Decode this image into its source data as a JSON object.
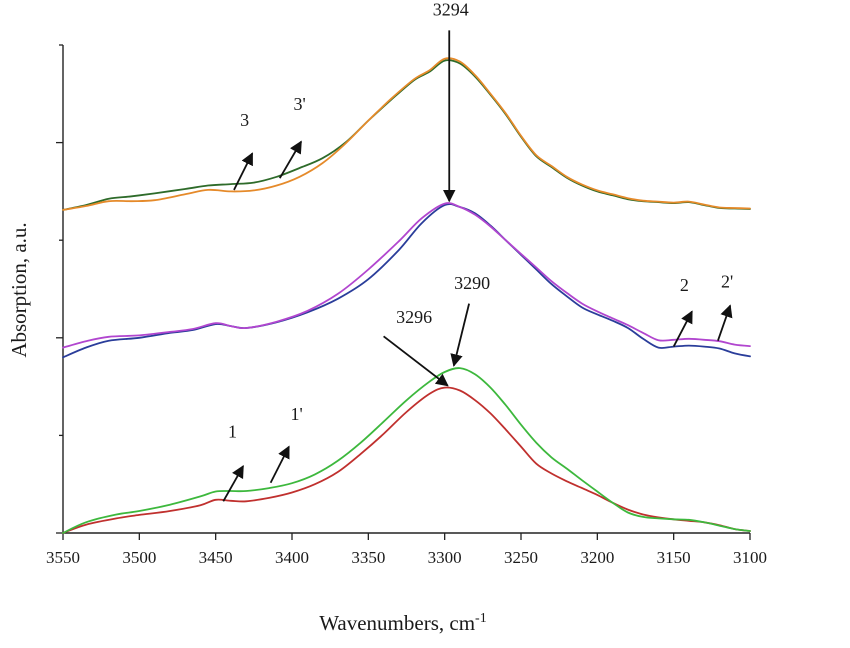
{
  "chart_data": {
    "type": "line",
    "xlabel": "Wavenumbers, cm",
    "xlabel_superscript": "-1",
    "ylabel": "Absorption, a.u.",
    "xlim": [
      3550,
      3100
    ],
    "ylim": [
      0,
      1
    ],
    "x_ticks": [
      3550,
      3500,
      3450,
      3400,
      3350,
      3300,
      3250,
      3200,
      3150,
      3100
    ],
    "x_tick_labels": [
      "3550",
      "3500",
      "3450",
      "3400",
      "3350",
      "3300",
      "3250",
      "3200",
      "3150",
      "3100"
    ],
    "y_major_ticks": [
      0.0,
      0.4,
      0.8
    ],
    "y_minor_ticks": [
      0.2,
      0.6,
      1.0
    ],
    "series": [
      {
        "name": "1",
        "color": "#c0302e",
        "x": [
          3550,
          3535,
          3515,
          3500,
          3480,
          3460,
          3450,
          3440,
          3430,
          3415,
          3400,
          3385,
          3370,
          3355,
          3340,
          3325,
          3310,
          3300,
          3290,
          3280,
          3270,
          3260,
          3250,
          3240,
          3230,
          3220,
          3210,
          3200,
          3190,
          3180,
          3170,
          3160,
          3150,
          3140,
          3130,
          3120,
          3110,
          3100
        ],
        "y": [
          0.0,
          0.017,
          0.03,
          0.037,
          0.045,
          0.057,
          0.068,
          0.066,
          0.065,
          0.072,
          0.083,
          0.1,
          0.125,
          0.162,
          0.203,
          0.248,
          0.285,
          0.298,
          0.292,
          0.272,
          0.245,
          0.212,
          0.177,
          0.142,
          0.122,
          0.106,
          0.092,
          0.078,
          0.062,
          0.048,
          0.038,
          0.032,
          0.028,
          0.025,
          0.022,
          0.016,
          0.008,
          0.004
        ]
      },
      {
        "name": "1'",
        "color": "#3db83d",
        "x": [
          3550,
          3535,
          3515,
          3500,
          3480,
          3460,
          3450,
          3440,
          3430,
          3415,
          3400,
          3385,
          3370,
          3355,
          3340,
          3325,
          3310,
          3300,
          3290,
          3280,
          3270,
          3260,
          3250,
          3240,
          3230,
          3220,
          3210,
          3200,
          3190,
          3180,
          3170,
          3160,
          3150,
          3140,
          3130,
          3120,
          3110,
          3100
        ],
        "y": [
          0.0,
          0.022,
          0.038,
          0.045,
          0.058,
          0.075,
          0.085,
          0.086,
          0.086,
          0.092,
          0.102,
          0.12,
          0.148,
          0.185,
          0.228,
          0.272,
          0.31,
          0.33,
          0.338,
          0.325,
          0.298,
          0.262,
          0.222,
          0.185,
          0.155,
          0.132,
          0.108,
          0.085,
          0.062,
          0.042,
          0.033,
          0.03,
          0.028,
          0.027,
          0.022,
          0.015,
          0.008,
          0.004
        ]
      },
      {
        "name": "2",
        "color": "#2a3d9a",
        "x": [
          3550,
          3535,
          3520,
          3500,
          3480,
          3465,
          3450,
          3440,
          3430,
          3410,
          3390,
          3370,
          3350,
          3330,
          3315,
          3300,
          3290,
          3280,
          3270,
          3260,
          3250,
          3240,
          3230,
          3220,
          3210,
          3200,
          3190,
          3180,
          3170,
          3160,
          3150,
          3140,
          3130,
          3120,
          3110,
          3100
        ],
        "y": [
          0.36,
          0.38,
          0.394,
          0.4,
          0.41,
          0.416,
          0.428,
          0.424,
          0.42,
          0.432,
          0.452,
          0.48,
          0.52,
          0.58,
          0.635,
          0.672,
          0.668,
          0.655,
          0.63,
          0.6,
          0.57,
          0.54,
          0.51,
          0.485,
          0.462,
          0.448,
          0.435,
          0.42,
          0.398,
          0.38,
          0.382,
          0.384,
          0.382,
          0.378,
          0.368,
          0.362
        ]
      },
      {
        "name": "2'",
        "color": "#b146cf",
        "x": [
          3550,
          3535,
          3520,
          3500,
          3480,
          3465,
          3450,
          3440,
          3430,
          3410,
          3390,
          3370,
          3350,
          3330,
          3315,
          3300,
          3290,
          3280,
          3270,
          3260,
          3250,
          3240,
          3230,
          3220,
          3210,
          3200,
          3190,
          3180,
          3170,
          3160,
          3150,
          3140,
          3130,
          3120,
          3110,
          3100
        ],
        "y": [
          0.38,
          0.393,
          0.402,
          0.405,
          0.412,
          0.418,
          0.43,
          0.424,
          0.42,
          0.433,
          0.455,
          0.49,
          0.54,
          0.598,
          0.645,
          0.675,
          0.668,
          0.652,
          0.628,
          0.6,
          0.572,
          0.544,
          0.516,
          0.492,
          0.47,
          0.454,
          0.44,
          0.426,
          0.41,
          0.395,
          0.396,
          0.398,
          0.396,
          0.393,
          0.386,
          0.383
        ]
      },
      {
        "name": "3",
        "color": "#2e6b2a",
        "x": [
          3550,
          3535,
          3520,
          3505,
          3490,
          3470,
          3455,
          3440,
          3425,
          3410,
          3395,
          3380,
          3365,
          3350,
          3335,
          3320,
          3310,
          3300,
          3290,
          3280,
          3270,
          3260,
          3250,
          3240,
          3230,
          3220,
          3210,
          3200,
          3190,
          3180,
          3170,
          3160,
          3150,
          3140,
          3130,
          3120,
          3110,
          3100
        ],
        "y": [
          0.662,
          0.672,
          0.685,
          0.69,
          0.696,
          0.705,
          0.712,
          0.715,
          0.718,
          0.73,
          0.748,
          0.768,
          0.8,
          0.845,
          0.888,
          0.928,
          0.945,
          0.968,
          0.962,
          0.935,
          0.898,
          0.858,
          0.812,
          0.772,
          0.75,
          0.728,
          0.712,
          0.7,
          0.692,
          0.684,
          0.68,
          0.678,
          0.676,
          0.678,
          0.672,
          0.666,
          0.665,
          0.664
        ]
      },
      {
        "name": "3'",
        "color": "#e58a2a",
        "x": [
          3550,
          3535,
          3520,
          3505,
          3490,
          3470,
          3455,
          3440,
          3425,
          3410,
          3395,
          3380,
          3365,
          3350,
          3335,
          3320,
          3310,
          3300,
          3290,
          3280,
          3270,
          3260,
          3250,
          3240,
          3230,
          3220,
          3210,
          3200,
          3190,
          3180,
          3170,
          3160,
          3150,
          3140,
          3130,
          3120,
          3110,
          3100
        ],
        "y": [
          0.662,
          0.67,
          0.68,
          0.68,
          0.682,
          0.694,
          0.703,
          0.7,
          0.702,
          0.712,
          0.73,
          0.758,
          0.798,
          0.845,
          0.89,
          0.93,
          0.948,
          0.972,
          0.966,
          0.938,
          0.9,
          0.86,
          0.814,
          0.774,
          0.752,
          0.73,
          0.714,
          0.702,
          0.694,
          0.686,
          0.681,
          0.679,
          0.677,
          0.679,
          0.673,
          0.667,
          0.666,
          0.665
        ]
      }
    ],
    "annotations": [
      {
        "text": "3294",
        "tx": 3296,
        "ty": 1.06,
        "ax0": 3297,
        "ay0": 1.03,
        "ax1": 3297,
        "ay1": 0.68
      },
      {
        "text": "3296",
        "tx": 3320,
        "ty": 0.43,
        "ax0": 3340,
        "ay0": 0.403,
        "ax1": 3298,
        "ay1": 0.302
      },
      {
        "text": "3290",
        "tx": 3282,
        "ty": 0.5,
        "ax0": 3284,
        "ay0": 0.47,
        "ax1": 3294,
        "ay1": 0.343
      },
      {
        "text": "1",
        "tx": 3439,
        "ty": 0.196,
        "ax0": 3445,
        "ay0": 0.065,
        "ax1": 3432,
        "ay1": 0.137
      },
      {
        "text": "1'",
        "tx": 3397,
        "ty": 0.232,
        "ax0": 3414,
        "ay0": 0.103,
        "ax1": 3402,
        "ay1": 0.177
      },
      {
        "text": "2",
        "tx": 3143,
        "ty": 0.496,
        "ax0": 3150,
        "ay0": 0.382,
        "ax1": 3138,
        "ay1": 0.454
      },
      {
        "text": "2'",
        "tx": 3115,
        "ty": 0.503,
        "ax0": 3121,
        "ay0": 0.394,
        "ax1": 3113,
        "ay1": 0.466
      },
      {
        "text": "3",
        "tx": 3431,
        "ty": 0.834,
        "ax0": 3438,
        "ay0": 0.703,
        "ax1": 3426,
        "ay1": 0.778
      },
      {
        "text": "3'",
        "tx": 3395,
        "ty": 0.867,
        "ax0": 3408,
        "ay0": 0.727,
        "ax1": 3394,
        "ay1": 0.802
      }
    ]
  }
}
